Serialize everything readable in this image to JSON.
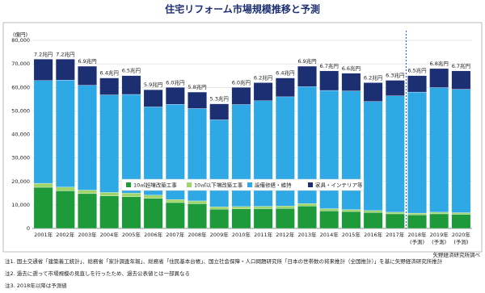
{
  "chart_data": {
    "type": "stacked-bar",
    "title": "住宅リフォーム市場規模推移と予測",
    "y_label": "(億円)",
    "categories": [
      "2001年",
      "2002年",
      "2003年",
      "2004年",
      "2005年",
      "2006年",
      "2007年",
      "2008年",
      "2009年",
      "2010年",
      "2011年",
      "2012年",
      "2013年",
      "2014年",
      "2015年",
      "2016年",
      "2017年",
      "2018年\n(予測)",
      "2019年\n(予測)",
      "2020年\n(予測)"
    ],
    "series": [
      {
        "name": "10㎡超増改築工事",
        "color": "#1f9a3a",
        "values": [
          17500,
          16000,
          14800,
          13800,
          13500,
          12800,
          11000,
          10500,
          8200,
          8300,
          8400,
          8500,
          9500,
          7500,
          7200,
          6800,
          6200,
          5800,
          6200,
          6000
        ]
      },
      {
        "name": "10㎡以下増改築工事",
        "color": "#9fd56a",
        "values": [
          1700,
          1600,
          1500,
          1500,
          1500,
          1400,
          1300,
          1200,
          1000,
          1000,
          1000,
          1000,
          1100,
          900,
          800,
          800,
          700,
          700,
          700,
          700
        ]
      },
      {
        "name": "設備修繕・維持",
        "color": "#2fa8e6",
        "values": [
          43700,
          45500,
          44600,
          41500,
          42000,
          37500,
          40500,
          39300,
          37000,
          43400,
          44900,
          46500,
          49700,
          50300,
          50500,
          46400,
          49500,
          51500,
          53000,
          52500
        ]
      },
      {
        "name": "家具・インテリア等",
        "color": "#1c2f73",
        "values": [
          9100,
          8900,
          8100,
          7200,
          8000,
          7300,
          7200,
          7000,
          6800,
          7300,
          7700,
          8000,
          8700,
          8300,
          7500,
          8000,
          6600,
          7000,
          8100,
          7800
        ]
      }
    ],
    "totals": {
      "values": [
        72000,
        72000,
        69000,
        64000,
        65000,
        59000,
        60000,
        58000,
        53000,
        60000,
        62000,
        64000,
        69000,
        67000,
        66000,
        62000,
        63000,
        65000,
        68000,
        67000
      ],
      "value_labels": [
        "7.2兆円",
        "7.2兆円",
        "6.9兆円",
        "6.4兆円",
        "6.5兆円",
        "5.9兆円",
        "6.0兆円",
        "5.8兆円",
        "5.3兆円",
        "6.0兆円",
        "6.2兆円",
        "6.4兆円",
        "6.9兆円",
        "6.7兆円",
        "6.6兆円",
        "6.2兆円",
        "6.3兆円",
        "6.5兆円",
        "6.8兆円",
        "6.7兆円"
      ]
    },
    "ylim": [
      0,
      80000
    ],
    "yticks": [
      {
        "value": 0,
        "label": "0"
      },
      {
        "value": 10000,
        "label": "10,000"
      },
      {
        "value": 20000,
        "label": "20,000"
      },
      {
        "value": 30000,
        "label": "30,000"
      },
      {
        "value": 40000,
        "label": "40,000"
      },
      {
        "value": 50000,
        "label": "50,000"
      },
      {
        "value": 60000,
        "label": "60,000"
      },
      {
        "value": 70000,
        "label": "70,000"
      },
      {
        "value": 80000,
        "label": "80,000"
      }
    ],
    "grid": true,
    "source": "矢野経済研究所調べ",
    "notes": [
      "注1. 国土交通省「建築着工統計」、総務省「家計調査年報」、総務省「住民基本台帳」、国立社会保障・人口問題研究所「日本の世帯数の将来推計（全国推計）」を基に矢野経済研究所推計",
      "注2. 過去に遡って市場規模の見直しを行ったため、過去公表値とは一部異なる",
      "注3. 2018年以降は予測値"
    ]
  }
}
